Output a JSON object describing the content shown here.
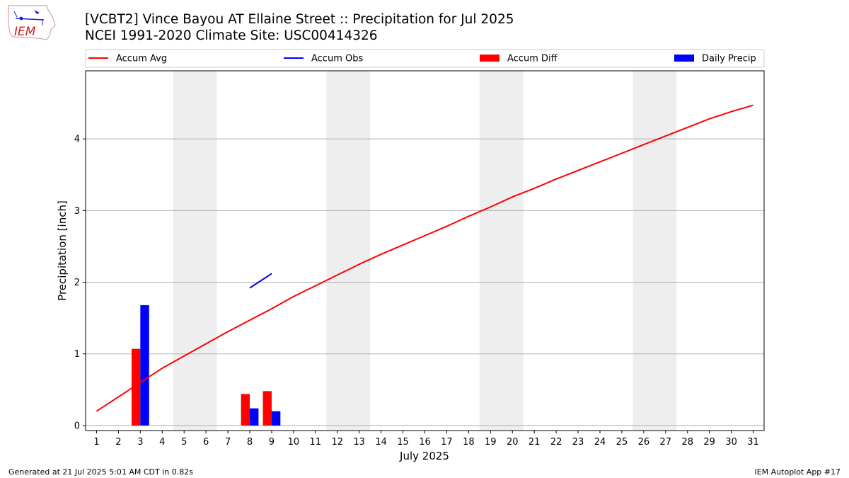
{
  "header": {
    "title": "[VCBT2] Vince Bayou  AT Ellaine Street :: Precipitation for Jul 2025",
    "subtitle": "NCEI 1991-2020 Climate Site: USC00414326"
  },
  "logo": {
    "text": "IEM",
    "icon": "iem-iowa-logo-icon"
  },
  "footer": {
    "left": "Generated at 21 Jul 2025 5:01 AM CDT in 0.82s",
    "right": "IEM Autoplot App #17"
  },
  "chart_data": {
    "type": "bar",
    "xlabel": "July 2025",
    "ylabel": "Precipitation [inch]",
    "xlim": [
      0.5,
      31.5
    ],
    "ylim": [
      -0.07,
      4.95
    ],
    "yticks": [
      0,
      1,
      2,
      3,
      4
    ],
    "x": [
      1,
      2,
      3,
      4,
      5,
      6,
      7,
      8,
      9,
      10,
      11,
      12,
      13,
      14,
      15,
      16,
      17,
      18,
      19,
      20,
      21,
      22,
      23,
      24,
      25,
      26,
      27,
      28,
      29,
      30,
      31
    ],
    "legend_position": "top",
    "grid": "horizontal",
    "weekend_shading": [
      [
        4.5,
        6.5
      ],
      [
        11.5,
        13.5
      ],
      [
        18.5,
        20.5
      ],
      [
        25.5,
        27.5
      ]
    ],
    "series": [
      {
        "name": "Accum Avg",
        "kind": "line",
        "color": "#ff0000",
        "x": [
          1,
          2,
          3,
          4,
          5,
          6,
          7,
          8,
          9,
          10,
          11,
          12,
          13,
          14,
          15,
          16,
          17,
          18,
          19,
          20,
          21,
          22,
          23,
          24,
          25,
          26,
          27,
          28,
          29,
          30,
          31
        ],
        "values": [
          0.2,
          0.4,
          0.6,
          0.8,
          0.97,
          1.14,
          1.31,
          1.47,
          1.63,
          1.8,
          1.95,
          2.1,
          2.25,
          2.39,
          2.52,
          2.65,
          2.78,
          2.92,
          3.05,
          3.19,
          3.31,
          3.44,
          3.56,
          3.68,
          3.8,
          3.92,
          4.04,
          4.16,
          4.28,
          4.38,
          4.47
        ]
      },
      {
        "name": "Accum Obs",
        "kind": "line",
        "color": "#0000ff",
        "x": [
          8,
          9
        ],
        "values": [
          1.92,
          2.12
        ]
      },
      {
        "name": "Accum Diff",
        "kind": "bar",
        "color": "#ff0000",
        "offset": -0.2,
        "x": [
          3,
          8,
          9
        ],
        "values": [
          1.07,
          0.44,
          0.48
        ]
      },
      {
        "name": "Daily Precip",
        "kind": "bar",
        "color": "#0000ff",
        "offset": 0.2,
        "x": [
          3,
          8,
          9
        ],
        "values": [
          1.68,
          0.24,
          0.2
        ]
      }
    ]
  }
}
